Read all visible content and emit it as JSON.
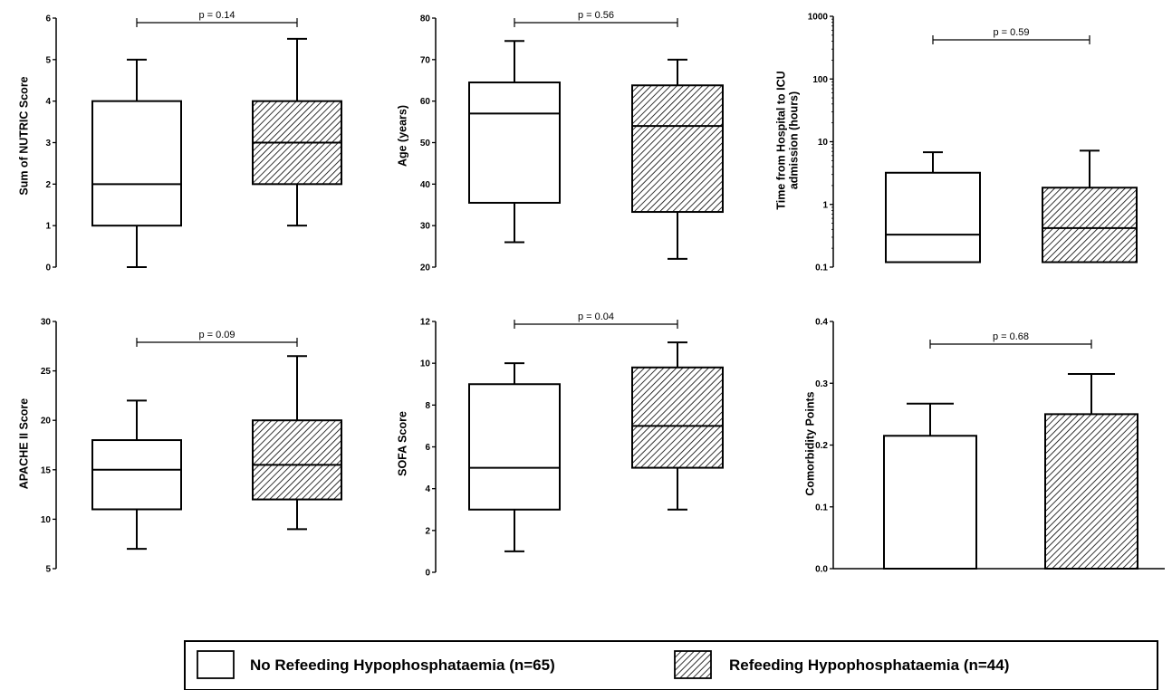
{
  "legend": {
    "items": [
      {
        "label": "No Refeeding Hypophosphataemia (n=65)",
        "pattern": "plain"
      },
      {
        "label": "Refeeding Hypophosphataemia (n=44)",
        "pattern": "hatched"
      }
    ]
  },
  "chart_data": [
    {
      "type": "box",
      "ylabel": [
        "Sum of NUTRIC Score"
      ],
      "y_scale": "linear",
      "ylim": [
        0,
        6
      ],
      "yticks": [
        0,
        1,
        2,
        3,
        4,
        5,
        6
      ],
      "ytick_labels": [
        "0",
        "1",
        "2",
        "3",
        "4",
        "5",
        "6"
      ],
      "p_value": "p = 0.14",
      "groups": [
        {
          "legend_index": 0,
          "min": 0,
          "q1": 1,
          "median": 2,
          "q3": 4,
          "max": 5
        },
        {
          "legend_index": 1,
          "min": 1,
          "q1": 2,
          "median": 3,
          "q3": 4,
          "max": 5.5
        }
      ]
    },
    {
      "type": "box",
      "ylabel": [
        "Age (years)"
      ],
      "y_scale": "linear",
      "ylim": [
        20,
        80
      ],
      "yticks": [
        20,
        30,
        40,
        50,
        60,
        70,
        80
      ],
      "ytick_labels": [
        "20",
        "30",
        "40",
        "50",
        "60",
        "70",
        "80"
      ],
      "p_value": "p = 0.56",
      "groups": [
        {
          "legend_index": 0,
          "min": 26,
          "q1": 35.5,
          "median": 57,
          "q3": 64.5,
          "max": 74.5
        },
        {
          "legend_index": 1,
          "min": 22,
          "q1": 33.3,
          "median": 54,
          "q3": 63.8,
          "max": 70
        }
      ]
    },
    {
      "type": "box",
      "ylabel": [
        "Time from Hospital to ICU",
        "admission (hours)"
      ],
      "y_scale": "log",
      "ylim": [
        0.1,
        1000
      ],
      "yticks": [
        0.1,
        1,
        10,
        100,
        1000
      ],
      "ytick_labels": [
        "0.1",
        "1",
        "10",
        "100",
        "1000"
      ],
      "p_value": "p = 0.59",
      "groups": [
        {
          "legend_index": 0,
          "min": 0.12,
          "q1": 0.12,
          "median": 0.33,
          "q3": 3.2,
          "max": 6.8
        },
        {
          "legend_index": 1,
          "min": 0.12,
          "q1": 0.12,
          "median": 0.42,
          "q3": 1.85,
          "max": 7.2
        }
      ]
    },
    {
      "type": "box",
      "ylabel": [
        "APACHE II Score"
      ],
      "y_scale": "linear",
      "ylim": [
        5,
        30
      ],
      "yticks": [
        5,
        10,
        15,
        20,
        25,
        30
      ],
      "ytick_labels": [
        "5",
        "10",
        "15",
        "20",
        "25",
        "30"
      ],
      "p_value": "p = 0.09",
      "groups": [
        {
          "legend_index": 0,
          "min": 7,
          "q1": 11,
          "median": 15,
          "q3": 18,
          "max": 22
        },
        {
          "legend_index": 1,
          "min": 9,
          "q1": 12,
          "median": 15.5,
          "q3": 20,
          "max": 26.5
        }
      ]
    },
    {
      "type": "box",
      "ylabel": [
        "SOFA Score"
      ],
      "y_scale": "linear",
      "ylim": [
        0,
        12
      ],
      "yticks": [
        0,
        2,
        4,
        6,
        8,
        10,
        12
      ],
      "ytick_labels": [
        "0",
        "2",
        "4",
        "6",
        "8",
        "10",
        "12"
      ],
      "p_value": "p = 0.04",
      "groups": [
        {
          "legend_index": 0,
          "min": 1,
          "q1": 3,
          "median": 5,
          "q3": 9,
          "max": 10
        },
        {
          "legend_index": 1,
          "min": 3,
          "q1": 5,
          "median": 7,
          "q3": 9.8,
          "max": 11
        }
      ]
    },
    {
      "type": "bar",
      "ylabel": [
        "Comorbidity Points"
      ],
      "y_scale": "linear",
      "ylim": [
        0,
        0.4
      ],
      "yticks": [
        0,
        0.1,
        0.2,
        0.3,
        0.4
      ],
      "ytick_labels": [
        "0.0",
        "0.1",
        "0.2",
        "0.3",
        "0.4"
      ],
      "p_value": "p = 0.68",
      "groups": [
        {
          "legend_index": 0,
          "value": 0.215,
          "error_upper": 0.267
        },
        {
          "legend_index": 1,
          "value": 0.25,
          "error_upper": 0.315
        }
      ]
    }
  ]
}
